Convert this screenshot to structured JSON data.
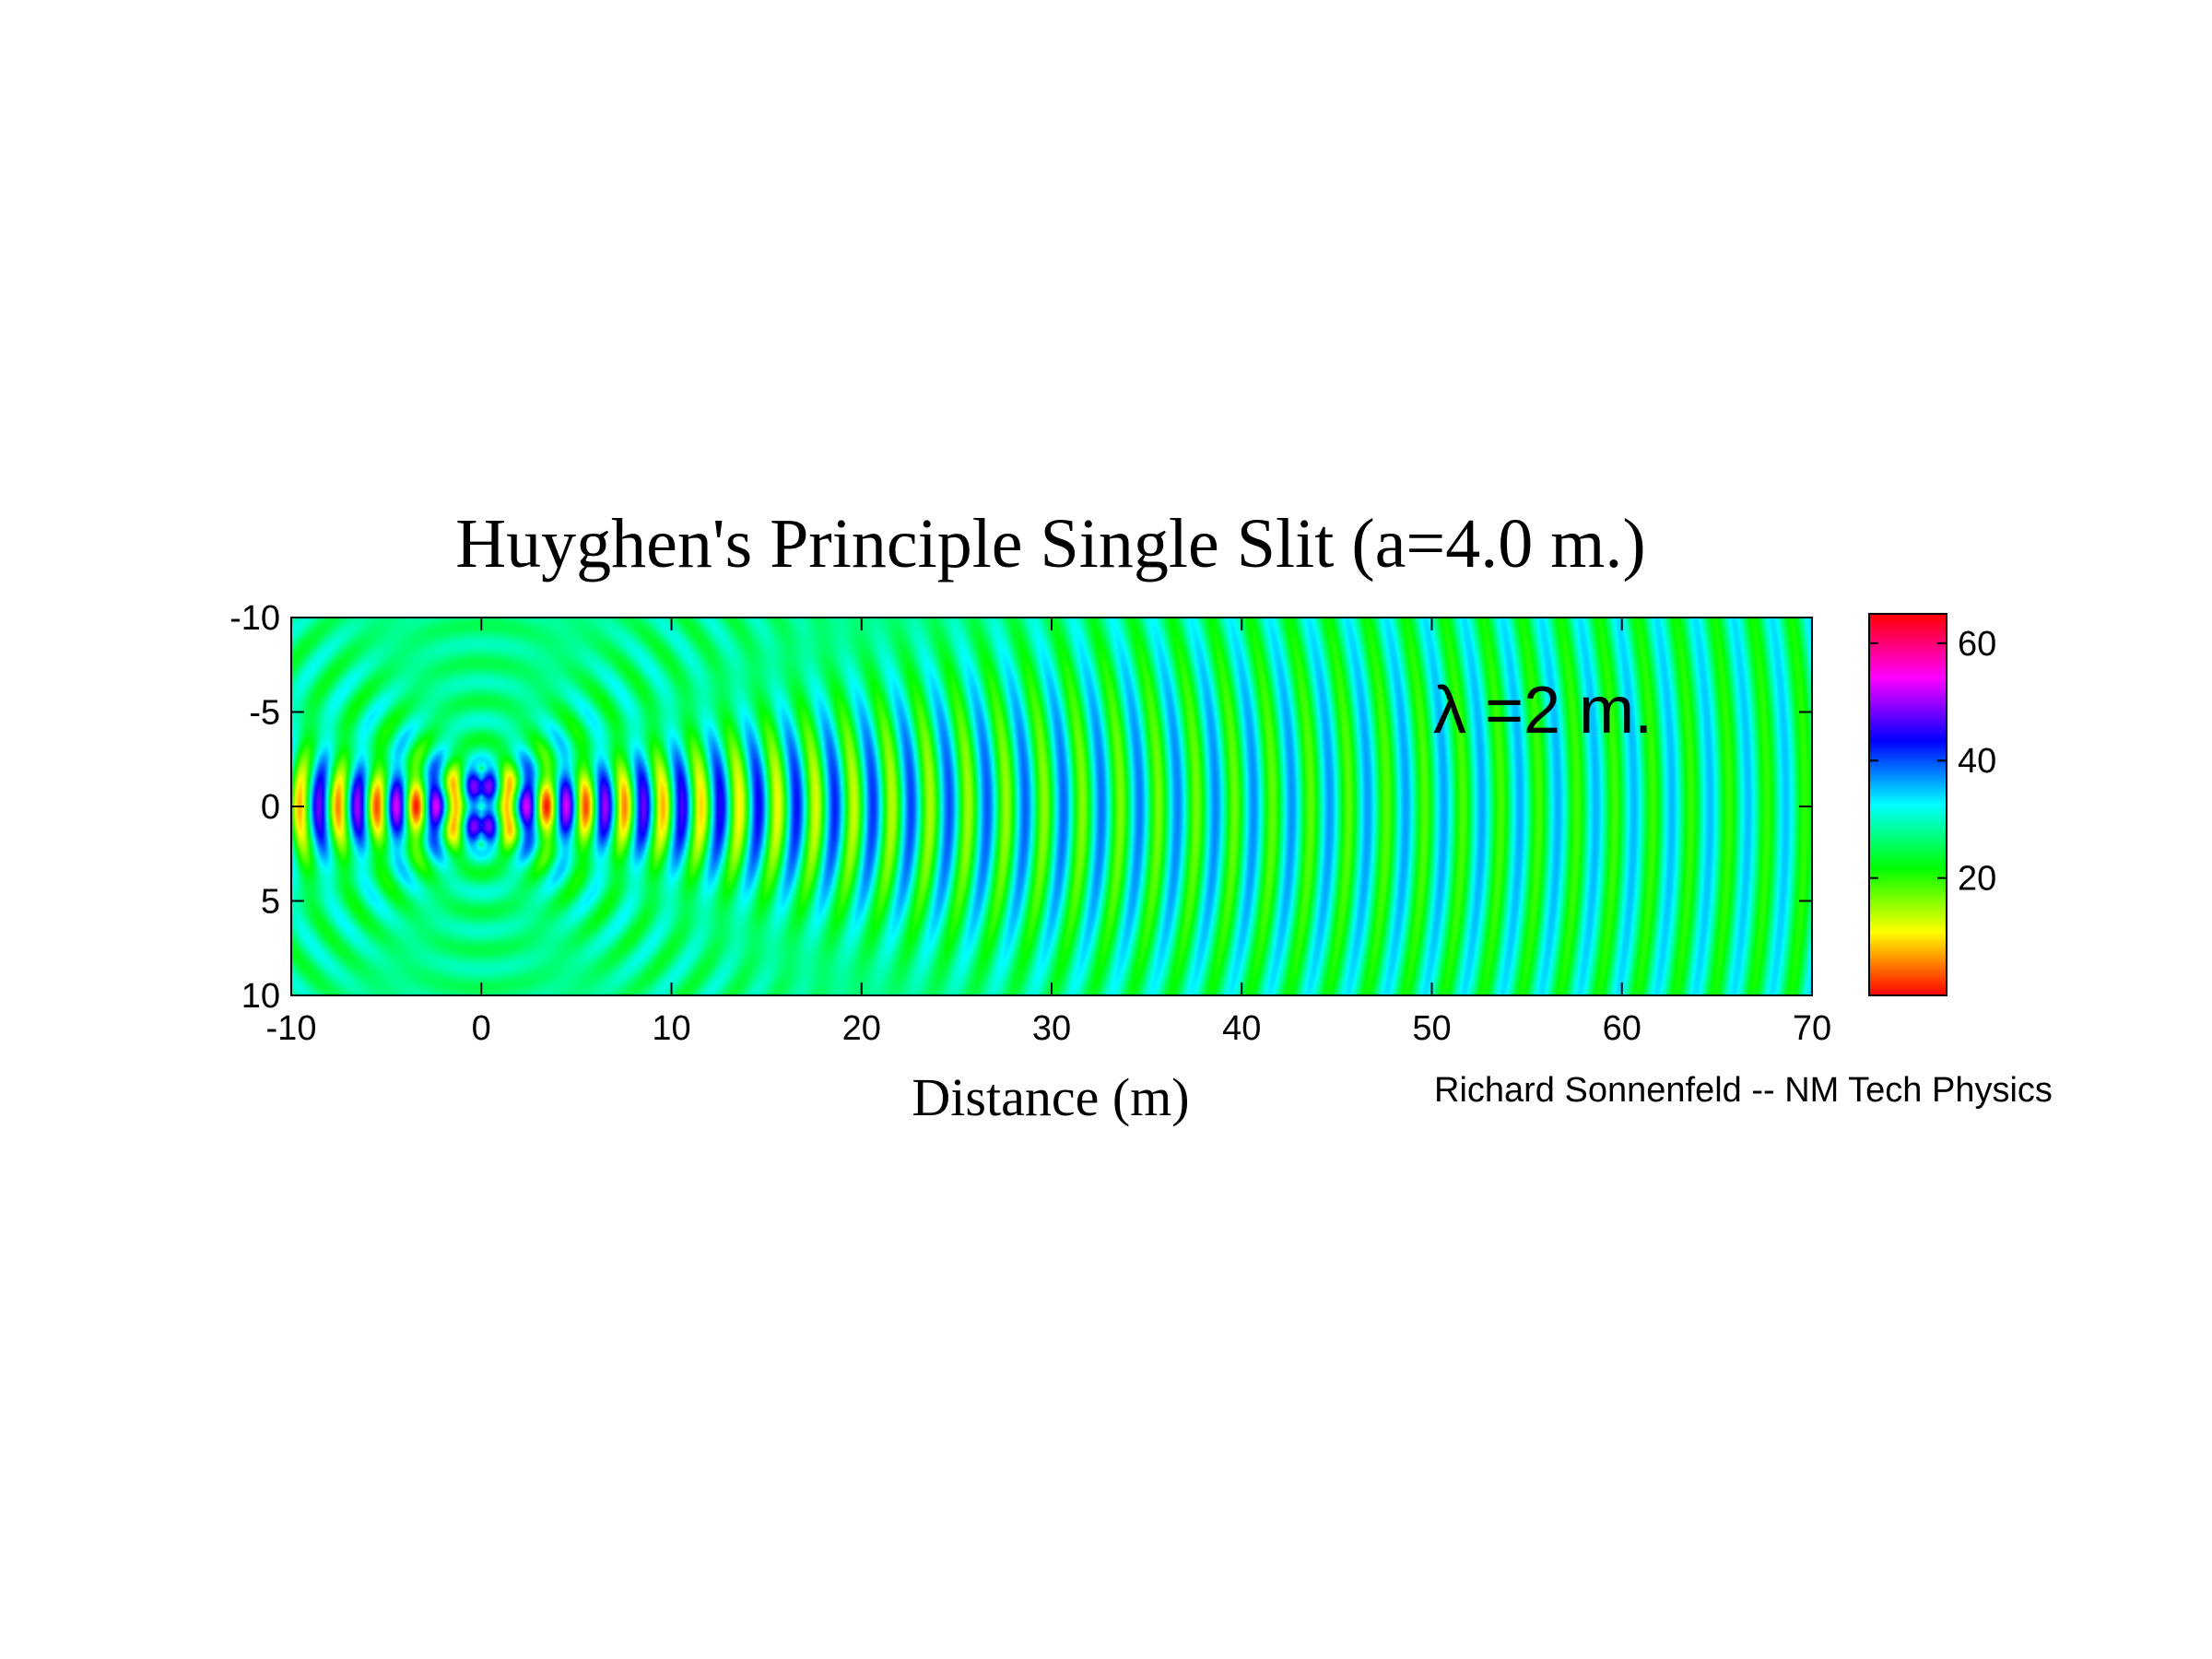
{
  "chart_data": {
    "type": "heatmap",
    "title": "Huyghen's Principle Single Slit (a=4.0 m.)",
    "xlabel": "Distance (m)",
    "ylabel": "",
    "xlim": [
      -10,
      70
    ],
    "ylim": [
      -10,
      10
    ],
    "y_reversed": true,
    "x_ticks": [
      "-10",
      "0",
      "10",
      "20",
      "30",
      "40",
      "50",
      "60",
      "70"
    ],
    "y_ticks": [
      "-10",
      "-5",
      "0",
      "5",
      "10"
    ],
    "slit_width_m": 4.0,
    "wavelength_m": 2,
    "source_x": 0,
    "colorbar": {
      "range": [
        0,
        65
      ],
      "ticks": [
        "20",
        "40",
        "60"
      ],
      "colormap": [
        "#ff0000",
        "#ffff00",
        "#00ff00",
        "#00ffff",
        "#0000ff",
        "#ff00ff",
        "#ff0000"
      ]
    },
    "annotation": "λ =2 m.",
    "credit": "Richard Sonnenfeld -- NM Tech Physics"
  }
}
